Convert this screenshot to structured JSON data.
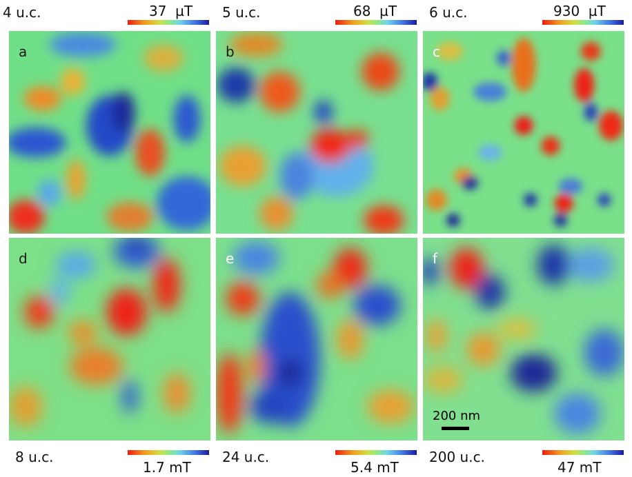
{
  "top_labels": [
    {
      "thickness": "4 u.c.",
      "scale": "37",
      "unit": "µT"
    },
    {
      "thickness": "5 u.c.",
      "scale": "68",
      "unit": "µT"
    },
    {
      "thickness": "6 u.c.",
      "scale": "930",
      "unit": "µT"
    }
  ],
  "bottom_labels": [
    {
      "thickness": "8 u.c.",
      "scale": "1.7 mT"
    },
    {
      "thickness": "24 u.c.",
      "scale": "5.4 mT"
    },
    {
      "thickness": "200 u.c.",
      "scale": "47 mT"
    }
  ],
  "panels": [
    "a",
    "b",
    "c",
    "d",
    "e",
    "f"
  ],
  "scale_bar": {
    "label": "200 nm"
  },
  "colormap": {
    "low": "#ee1c12",
    "mid": "#7fe088",
    "high": "#1a1a9c"
  }
}
